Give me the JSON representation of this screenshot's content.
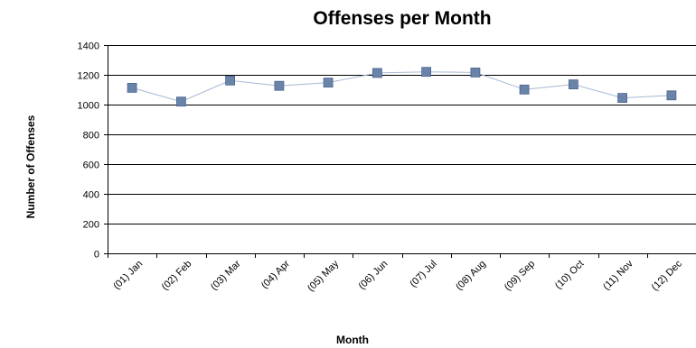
{
  "chart_data": {
    "type": "line",
    "title": "Offenses per Month",
    "xlabel": "Month",
    "ylabel": "Number of Offenses",
    "ylim": [
      0,
      1400
    ],
    "yticks": [
      0,
      200,
      400,
      600,
      800,
      1000,
      1200,
      1400
    ],
    "grid": true,
    "legend": "none",
    "categories": [
      "(01) Jan",
      "(02) Feb",
      "(03) Mar",
      "(04) Apr",
      "(05) May",
      "(06) Jun",
      "(07) Jul",
      "(08) Aug",
      "(09) Sep",
      "(10) Oct",
      "(11) Nov",
      "(12) Dec"
    ],
    "series": [
      {
        "values": [
          1113,
          1020,
          1162,
          1126,
          1148,
          1213,
          1220,
          1216,
          1101,
          1136,
          1045,
          1062
        ],
        "line_color": "#a6b8d3",
        "marker_color": "#6a83a9",
        "marker_edge_color": "#4b6590"
      }
    ]
  }
}
